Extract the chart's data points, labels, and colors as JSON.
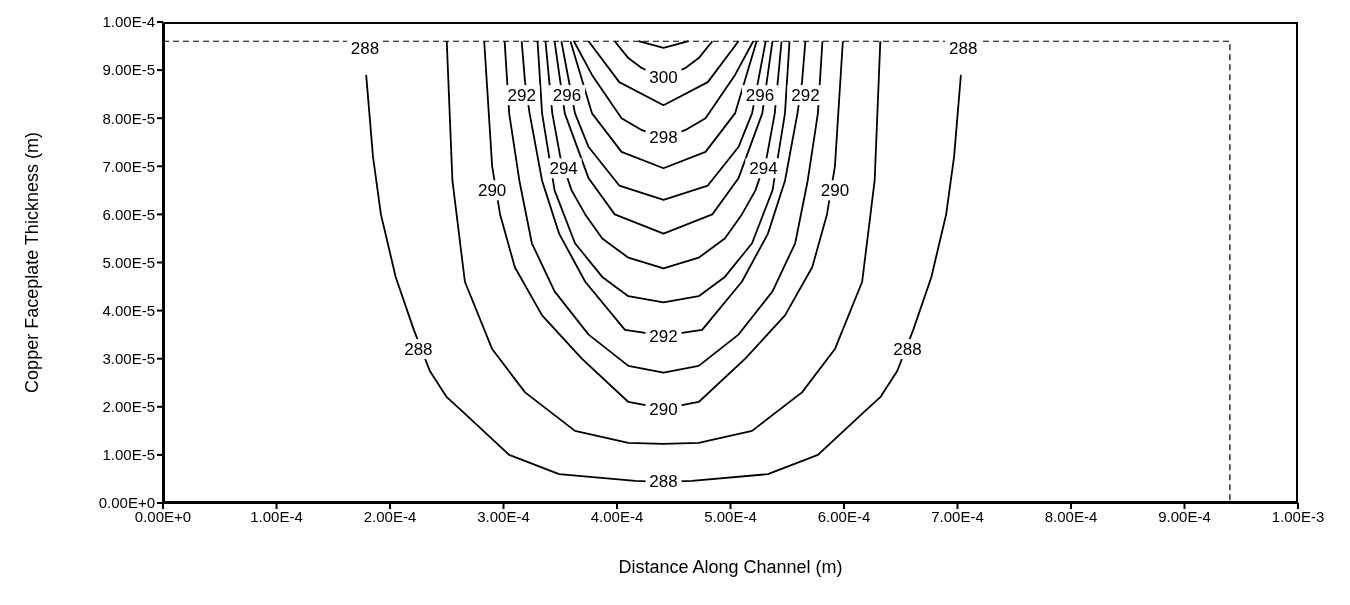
{
  "chart_data": {
    "type": "line",
    "xlabel": "Distance Along Channel (m)",
    "ylabel": "Copper Faceplate Thickness (m)",
    "xlim": [
      0,
      0.001
    ],
    "ylim": [
      0,
      0.0001
    ],
    "xticks": [
      {
        "value": 0,
        "label": "0.00E+0"
      },
      {
        "value": 0.0001,
        "label": "1.00E-4"
      },
      {
        "value": 0.0002,
        "label": "2.00E-4"
      },
      {
        "value": 0.0003,
        "label": "3.00E-4"
      },
      {
        "value": 0.0004,
        "label": "4.00E-4"
      },
      {
        "value": 0.0005,
        "label": "5.00E-4"
      },
      {
        "value": 0.0006,
        "label": "6.00E-4"
      },
      {
        "value": 0.0007,
        "label": "7.00E-4"
      },
      {
        "value": 0.0008,
        "label": "8.00E-4"
      },
      {
        "value": 0.0009,
        "label": "9.00E-4"
      },
      {
        "value": 0.001,
        "label": "1.00E-3"
      }
    ],
    "yticks": [
      {
        "value": 0,
        "label": "0.00E+0"
      },
      {
        "value": 1e-05,
        "label": "1.00E-5"
      },
      {
        "value": 2e-05,
        "label": "2.00E-5"
      },
      {
        "value": 3e-05,
        "label": "3.00E-5"
      },
      {
        "value": 4e-05,
        "label": "4.00E-5"
      },
      {
        "value": 5e-05,
        "label": "5.00E-5"
      },
      {
        "value": 6e-05,
        "label": "6.00E-5"
      },
      {
        "value": 7e-05,
        "label": "7.00E-5"
      },
      {
        "value": 8e-05,
        "label": "8.00E-5"
      },
      {
        "value": 9e-05,
        "label": "9.00E-5"
      },
      {
        "value": 0.0001,
        "label": "1.00E-4"
      }
    ],
    "series": [
      {
        "color": "#000000",
        "line_style": "dashed",
        "x": [
          0,
          0.00094,
          0.00094
        ],
        "values": [
          9.6e-05,
          9.6e-05,
          0
        ]
      },
      {
        "color": "#000000",
        "x": [
          0.000179,
          0.000185,
          0.000192,
          0.000205,
          0.000221,
          0.000235,
          0.00025,
          0.000264,
          0.000305,
          0.000349,
          0.000416,
          0.000441,
          0.000466,
          0.000533,
          0.000577,
          0.000618,
          0.000632,
          0.000647,
          0.000661,
          0.000677,
          0.00069,
          0.000697,
          0.000703
        ],
        "values": [
          8.9e-05,
          7.2e-05,
          6e-05,
          4.7e-05,
          3.6e-05,
          2.75e-05,
          2.2e-05,
          1.9e-05,
          1e-05,
          6e-06,
          4.6e-06,
          4.4e-06,
          4.6e-06,
          6e-06,
          1e-05,
          1.9e-05,
          2.2e-05,
          2.75e-05,
          3.6e-05,
          4.7e-05,
          6e-05,
          7.2e-05,
          8.9e-05
        ]
      },
      {
        "color": "#000000",
        "x": [
          0.00025,
          0.000255,
          0.000266,
          0.00029,
          0.000319,
          0.000363,
          0.00041,
          0.000441,
          0.000472,
          0.000519,
          0.000563,
          0.000592,
          0.000616,
          0.000627,
          0.000632
        ],
        "values": [
          9.6e-05,
          6.7e-05,
          4.6e-05,
          3.2e-05,
          2.3e-05,
          1.5e-05,
          1.25e-05,
          1.23e-05,
          1.25e-05,
          1.5e-05,
          2.3e-05,
          3.2e-05,
          4.6e-05,
          6.7e-05,
          9.6e-05
        ]
      },
      {
        "color": "#000000",
        "x": [
          0.000283,
          0.00029,
          0.000297,
          0.00031,
          0.000334,
          0.000369,
          0.00041,
          0.000441,
          0.000472,
          0.000513,
          0.000548,
          0.000572,
          0.000585,
          0.000592,
          0.000599
        ],
        "values": [
          9.6e-05,
          7e-05,
          6e-05,
          4.9e-05,
          3.9e-05,
          3e-05,
          2.1e-05,
          1.96e-05,
          2.1e-05,
          3e-05,
          3.9e-05,
          4.9e-05,
          6e-05,
          7e-05,
          9.6e-05
        ]
      },
      {
        "color": "#000000",
        "x": [
          0.000301,
          0.000305,
          0.000314,
          0.000325,
          0.000345,
          0.000375,
          0.00041,
          0.000441,
          0.000472,
          0.000507,
          0.000537,
          0.000557,
          0.000568,
          0.000577,
          0.000581
        ],
        "values": [
          9.6e-05,
          8.1e-05,
          6.7e-05,
          5.4e-05,
          4.4e-05,
          3.5e-05,
          2.85e-05,
          2.71e-05,
          2.85e-05,
          3.5e-05,
          4.4e-05,
          5.4e-05,
          6.7e-05,
          8.1e-05,
          9.6e-05
        ]
      },
      {
        "color": "#000000",
        "x": [
          0.000316,
          0.000319,
          0.000323,
          0.000334,
          0.000349,
          0.000372,
          0.000407,
          0.000441,
          0.000475,
          0.00051,
          0.000533,
          0.000548,
          0.000559,
          0.000563,
          0.000566
        ],
        "values": [
          9.6e-05,
          8.75e-05,
          8.1e-05,
          6.7e-05,
          5.6e-05,
          4.6e-05,
          3.6e-05,
          3.48e-05,
          3.6e-05,
          4.6e-05,
          5.6e-05,
          6.7e-05,
          8.1e-05,
          8.75e-05,
          9.6e-05
        ]
      },
      {
        "color": "#000000",
        "x": [
          0.00033,
          0.000334,
          0.000345,
          0.000363,
          0.000387,
          0.00041,
          0.000441,
          0.000472,
          0.000495,
          0.000519,
          0.000537,
          0.000548,
          0.000552
        ],
        "values": [
          9.6e-05,
          8.1e-05,
          6.5e-05,
          5.4e-05,
          4.7e-05,
          4.3e-05,
          4.17e-05,
          4.3e-05,
          4.7e-05,
          5.4e-05,
          6.5e-05,
          8.1e-05,
          9.6e-05
        ]
      },
      {
        "color": "#000000",
        "x": [
          0.000337,
          0.000343,
          0.00035,
          0.00036,
          0.000372,
          0.000387,
          0.00041,
          0.000441,
          0.000472,
          0.000495,
          0.00051,
          0.000522,
          0.000532,
          0.000539,
          0.000545
        ],
        "values": [
          9.6e-05,
          8.1e-05,
          7.2e-05,
          6.5e-05,
          6e-05,
          5.5e-05,
          5.1e-05,
          4.88e-05,
          5.1e-05,
          5.5e-05,
          6e-05,
          6.5e-05,
          7.2e-05,
          8.1e-05,
          9.6e-05
        ]
      },
      {
        "color": "#000000",
        "x": [
          0.000345,
          0.000354,
          0.000375,
          0.000398,
          0.000441,
          0.000484,
          0.000507,
          0.000528,
          0.000537
        ],
        "values": [
          9.6e-05,
          8.1e-05,
          6.75e-05,
          6e-05,
          5.6e-05,
          6e-05,
          6.75e-05,
          8.1e-05,
          9.6e-05
        ]
      },
      {
        "color": "#000000",
        "x": [
          0.000351,
          0.000363,
          0.000375,
          0.000402,
          0.000441,
          0.00048,
          0.000507,
          0.000519,
          0.000531
        ],
        "values": [
          9.6e-05,
          8.1e-05,
          7.4e-05,
          6.6e-05,
          6.3e-05,
          6.6e-05,
          7.4e-05,
          8.1e-05,
          9.6e-05
        ]
      },
      {
        "color": "#000000",
        "x": [
          0.000359,
          0.000378,
          0.000404,
          0.000441,
          0.000478,
          0.000504,
          0.000523
        ],
        "values": [
          9.6e-05,
          8.1e-05,
          7.3e-05,
          6.96e-05,
          7.3e-05,
          8.1e-05,
          9.6e-05
        ]
      },
      {
        "color": "#000000",
        "x": [
          0.000362,
          0.000378,
          0.000404,
          0.000422,
          0.000441,
          0.00046,
          0.000478,
          0.000504,
          0.00052
        ],
        "values": [
          9.6e-05,
          8.9e-05,
          8e-05,
          7.75e-05,
          7.6e-05,
          7.75e-05,
          8e-05,
          8.9e-05,
          9.6e-05
        ]
      },
      {
        "color": "#000000",
        "x": [
          0.000375,
          0.000402,
          0.000441,
          0.00048,
          0.000507
        ],
        "values": [
          9.6e-05,
          8.75e-05,
          8.27e-05,
          8.75e-05,
          9.6e-05
        ]
      },
      {
        "color": "#000000",
        "x": [
          0.000398,
          0.00041,
          0.000422,
          0.000441,
          0.00046,
          0.000472,
          0.000484
        ],
        "values": [
          9.6e-05,
          9.25e-05,
          9.04e-05,
          8.85e-05,
          9.04e-05,
          9.25e-05,
          9.6e-05
        ]
      },
      {
        "color": "#000000",
        "x": [
          0.000419,
          0.000441,
          0.000463
        ],
        "values": [
          9.6e-05,
          9.46e-05,
          9.6e-05
        ]
      }
    ],
    "annotations": [
      {
        "text": "288",
        "x": 0.000178,
        "y": 9.45e-05
      },
      {
        "text": "288",
        "x": 0.000705,
        "y": 9.45e-05
      },
      {
        "text": "288",
        "x": 0.000225,
        "y": 3.2e-05
      },
      {
        "text": "288",
        "x": 0.000656,
        "y": 3.2e-05
      },
      {
        "text": "288",
        "x": 0.000441,
        "y": 4.6e-06
      },
      {
        "text": "290",
        "x": 0.000441,
        "y": 1.96e-05
      },
      {
        "text": "292",
        "x": 0.000441,
        "y": 3.48e-05
      },
      {
        "text": "298",
        "x": 0.000441,
        "y": 7.6e-05
      },
      {
        "text": "300",
        "x": 0.000441,
        "y": 8.85e-05
      },
      {
        "text": "290",
        "x": 0.00029,
        "y": 6.5e-05
      },
      {
        "text": "290",
        "x": 0.000592,
        "y": 6.5e-05
      },
      {
        "text": "292",
        "x": 0.000316,
        "y": 8.48e-05
      },
      {
        "text": "292",
        "x": 0.000566,
        "y": 8.48e-05
      },
      {
        "text": "296",
        "x": 0.000356,
        "y": 8.48e-05
      },
      {
        "text": "296",
        "x": 0.000526,
        "y": 8.48e-05
      },
      {
        "text": "294",
        "x": 0.000353,
        "y": 6.96e-05
      },
      {
        "text": "294",
        "x": 0.000529,
        "y": 6.96e-05
      }
    ]
  }
}
